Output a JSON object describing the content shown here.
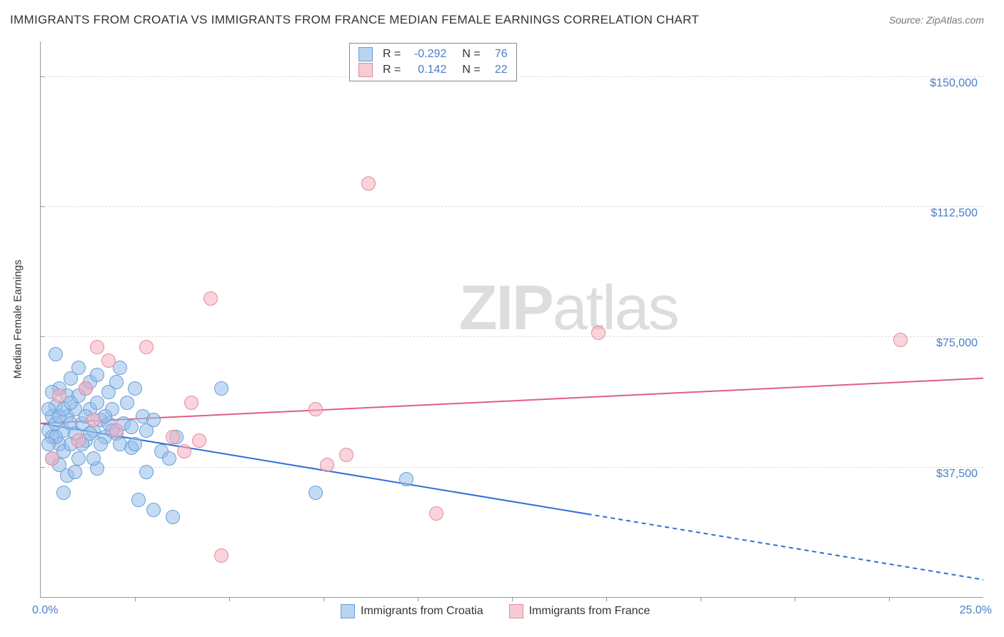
{
  "title": "IMMIGRANTS FROM CROATIA VS IMMIGRANTS FROM FRANCE MEDIAN FEMALE EARNINGS CORRELATION CHART",
  "source": "Source: ZipAtlas.com",
  "watermark_zip": "ZIP",
  "watermark_atlas": "atlas",
  "y_axis_title": "Median Female Earnings",
  "chart": {
    "type": "scatter",
    "xlim": [
      0,
      25
    ],
    "ylim": [
      0,
      160000
    ],
    "x_start_label": "0.0%",
    "x_end_label": "25.0%",
    "y_ticks": [
      37500,
      75000,
      112500,
      150000
    ],
    "y_tick_labels": [
      "$37,500",
      "$75,000",
      "$112,500",
      "$150,000"
    ],
    "x_tick_positions": [
      2.5,
      5,
      7.5,
      10,
      12.5,
      15,
      17.5,
      20,
      22.5
    ],
    "grid_color": "#dddddd",
    "axis_color": "#999999",
    "value_color": "#4a7ec7",
    "background": "#ffffff",
    "marker_radius": 9,
    "series": [
      {
        "name": "Immigrants from Croatia",
        "key": "croatia",
        "fill": "rgba(150,190,235,0.55)",
        "stroke": "#6a9fd4",
        "swatch_fill": "#b9d3f0",
        "swatch_border": "#6a9fd4",
        "r": "-0.292",
        "n": "76",
        "trend": {
          "x1": 0,
          "y1": 50000,
          "x2": 25,
          "y2": 5000,
          "solid_until_x": 14.5,
          "color": "#2e6fd1",
          "width": 2
        },
        "points": [
          [
            0.2,
            48000
          ],
          [
            0.3,
            52000
          ],
          [
            0.3,
            46000
          ],
          [
            0.4,
            55000
          ],
          [
            0.4,
            50000
          ],
          [
            0.5,
            44000
          ],
          [
            0.5,
            60000
          ],
          [
            0.6,
            48000
          ],
          [
            0.6,
            30000
          ],
          [
            0.7,
            52000
          ],
          [
            0.7,
            58000
          ],
          [
            0.8,
            50000
          ],
          [
            0.8,
            63000
          ],
          [
            0.9,
            47000
          ],
          [
            0.9,
            54000
          ],
          [
            1.0,
            58000
          ],
          [
            1.0,
            66000
          ],
          [
            1.1,
            50000
          ],
          [
            1.2,
            60000
          ],
          [
            1.2,
            45000
          ],
          [
            1.3,
            62000
          ],
          [
            1.3,
            54000
          ],
          [
            1.4,
            48000
          ],
          [
            1.5,
            56000
          ],
          [
            1.5,
            37000
          ],
          [
            1.5,
            64000
          ],
          [
            1.6,
            51000
          ],
          [
            1.7,
            46000
          ],
          [
            1.8,
            59000
          ],
          [
            1.8,
            50000
          ],
          [
            1.9,
            54000
          ],
          [
            2.0,
            62000
          ],
          [
            2.0,
            47000
          ],
          [
            2.1,
            66000
          ],
          [
            2.2,
            50000
          ],
          [
            2.3,
            56000
          ],
          [
            2.4,
            43000
          ],
          [
            2.5,
            60000
          ],
          [
            2.6,
            28000
          ],
          [
            2.7,
            52000
          ],
          [
            2.8,
            36000
          ],
          [
            2.8,
            48000
          ],
          [
            3.0,
            25000
          ],
          [
            3.0,
            51000
          ],
          [
            3.2,
            42000
          ],
          [
            3.4,
            40000
          ],
          [
            3.6,
            46000
          ],
          [
            3.5,
            23000
          ],
          [
            4.8,
            60000
          ],
          [
            7.3,
            30000
          ],
          [
            9.7,
            34000
          ],
          [
            0.4,
            70000
          ],
          [
            1.0,
            40000
          ],
          [
            0.6,
            42000
          ],
          [
            1.1,
            44000
          ],
          [
            0.7,
            35000
          ],
          [
            0.2,
            54000
          ],
          [
            0.3,
            59000
          ],
          [
            0.5,
            52000
          ],
          [
            0.8,
            44000
          ],
          [
            1.4,
            40000
          ],
          [
            1.6,
            44000
          ],
          [
            1.9,
            48000
          ],
          [
            2.1,
            44000
          ],
          [
            2.4,
            49000
          ],
          [
            0.3,
            40000
          ],
          [
            0.4,
            46000
          ],
          [
            0.6,
            54000
          ],
          [
            0.9,
            36000
          ],
          [
            1.7,
            52000
          ],
          [
            2.5,
            44000
          ],
          [
            0.5,
            38000
          ],
          [
            0.2,
            44000
          ],
          [
            0.8,
            56000
          ],
          [
            1.2,
            52000
          ],
          [
            1.3,
            47000
          ]
        ]
      },
      {
        "name": "Immigrants from France",
        "key": "france",
        "fill": "rgba(245,175,190,0.55)",
        "stroke": "#e48ba0",
        "swatch_fill": "#f6cbd4",
        "swatch_border": "#e48ba0",
        "r": "0.142",
        "n": "22",
        "trend": {
          "x1": 0,
          "y1": 50000,
          "x2": 25,
          "y2": 63000,
          "solid_until_x": 25,
          "color": "#e0607f",
          "width": 2
        },
        "points": [
          [
            0.3,
            40000
          ],
          [
            0.5,
            58000
          ],
          [
            1.0,
            45000
          ],
          [
            1.2,
            60000
          ],
          [
            1.4,
            51000
          ],
          [
            1.5,
            72000
          ],
          [
            1.8,
            68000
          ],
          [
            2.0,
            48000
          ],
          [
            2.8,
            72000
          ],
          [
            3.5,
            46000
          ],
          [
            3.8,
            42000
          ],
          [
            4.2,
            45000
          ],
          [
            4.0,
            56000
          ],
          [
            4.5,
            86000
          ],
          [
            4.8,
            12000
          ],
          [
            7.3,
            54000
          ],
          [
            7.6,
            38000
          ],
          [
            8.1,
            41000
          ],
          [
            8.7,
            119000
          ],
          [
            10.5,
            24000
          ],
          [
            14.8,
            76000
          ],
          [
            22.8,
            74000
          ]
        ]
      }
    ]
  },
  "stats_labels": {
    "r": "R =",
    "n": "N ="
  },
  "legend_labels": [
    "Immigrants from Croatia",
    "Immigrants from France"
  ]
}
